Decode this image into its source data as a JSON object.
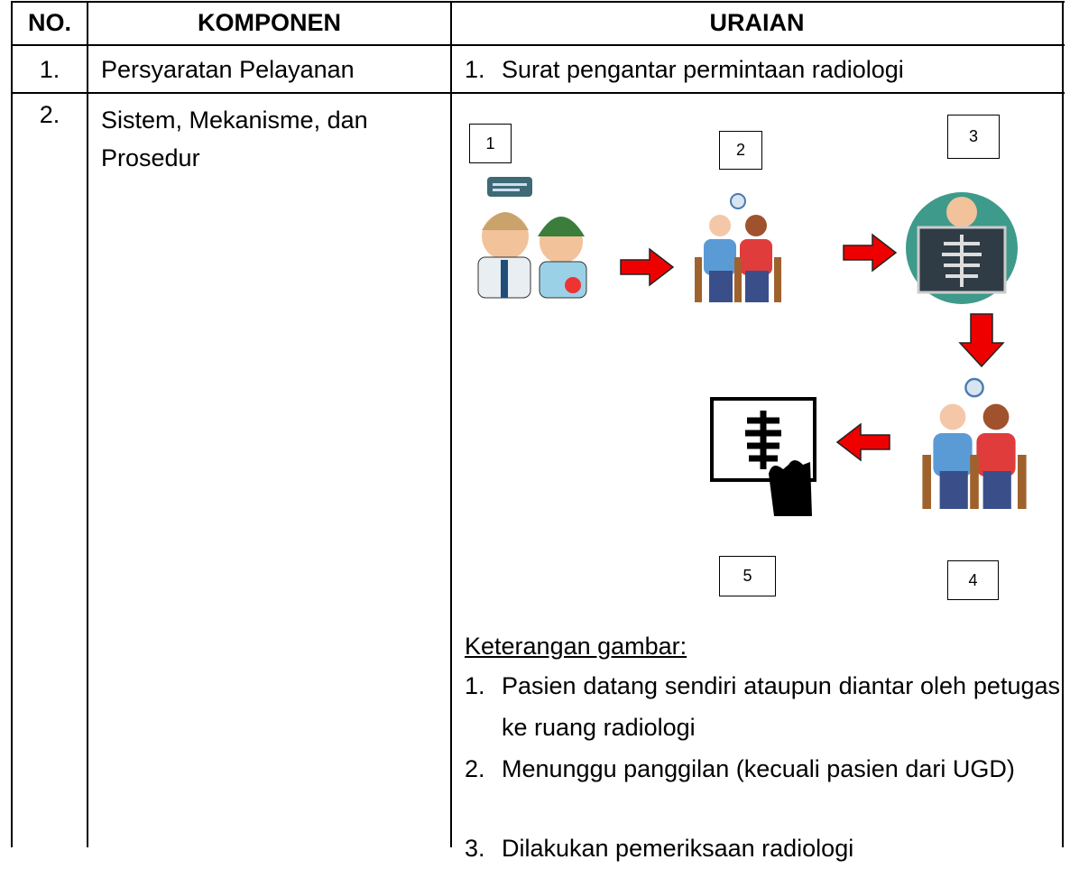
{
  "table": {
    "header": [
      "NO.",
      "KOMPONEN",
      "URAIAN"
    ],
    "rows": [
      {
        "no": "1.",
        "component": "Persyaratan Pelayanan",
        "items": [
          {
            "marker": "1.",
            "text": "Surat pengantar permintaan radiologi"
          }
        ]
      },
      {
        "no": "2.",
        "component": "Sistem, Mekanisme, dan Prosedur",
        "steps": [
          "1",
          "2",
          "3",
          "4",
          "5"
        ],
        "caption": "Keterangan gambar:",
        "items": [
          {
            "marker": "1.",
            "text": "Pasien datang sendiri ataupun diantar oleh petugas ke ruang radiologi"
          },
          {
            "marker": "2.",
            "text": "Menunggu panggilan (kecuali pasien dari UGD)"
          },
          {
            "marker": "3.",
            "text": "Dilakukan pemeriksaan radiologi"
          }
        ]
      }
    ]
  }
}
